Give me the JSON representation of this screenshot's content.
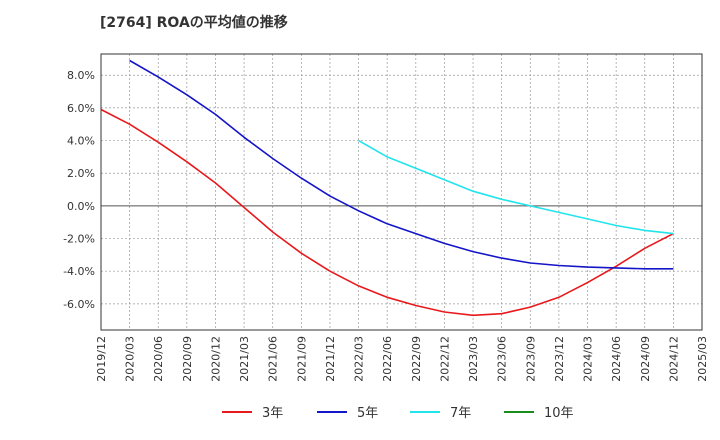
{
  "chart_data": {
    "type": "line",
    "title": "[2764]  ROAの平均値の推移",
    "xlabel": "",
    "ylabel": "",
    "ylim": [
      -7.6,
      9.3
    ],
    "yticks": [
      8.0,
      6.0,
      4.0,
      2.0,
      0.0,
      -2.0,
      -4.0,
      -6.0
    ],
    "ytick_labels": [
      "8.0%",
      "6.0%",
      "4.0%",
      "2.0%",
      "0.0%",
      "-2.0%",
      "-4.0%",
      "-6.0%"
    ],
    "x_categories": [
      "2019/12",
      "2020/03",
      "2020/06",
      "2020/09",
      "2020/12",
      "2021/03",
      "2021/06",
      "2021/09",
      "2021/12",
      "2022/03",
      "2022/06",
      "2022/09",
      "2022/12",
      "2023/03",
      "2023/06",
      "2023/09",
      "2023/12",
      "2024/03",
      "2024/06",
      "2024/09",
      "2024/12",
      "2025/03"
    ],
    "grid": true,
    "legend_position": "bottom",
    "series": [
      {
        "name": "3年",
        "color": "#e8191c",
        "x": [
          "2019/12",
          "2020/03",
          "2020/06",
          "2020/09",
          "2020/12",
          "2021/03",
          "2021/06",
          "2021/09",
          "2021/12",
          "2022/03",
          "2022/06",
          "2022/09",
          "2022/12",
          "2023/03",
          "2023/06",
          "2023/09",
          "2023/12",
          "2024/03",
          "2024/06",
          "2024/09",
          "2024/12"
        ],
        "values": [
          5.9,
          5.0,
          3.9,
          2.7,
          1.4,
          -0.1,
          -1.6,
          -2.9,
          -4.0,
          -4.9,
          -5.6,
          -6.1,
          -6.5,
          -6.7,
          -6.6,
          -6.2,
          -5.6,
          -4.7,
          -3.7,
          -2.6,
          -1.7
        ]
      },
      {
        "name": "5年",
        "color": "#1414c8",
        "x": [
          "2020/03",
          "2020/06",
          "2020/09",
          "2020/12",
          "2021/03",
          "2021/06",
          "2021/09",
          "2021/12",
          "2022/03",
          "2022/06",
          "2022/09",
          "2022/12",
          "2023/03",
          "2023/06",
          "2023/09",
          "2023/12",
          "2024/03",
          "2024/06",
          "2024/09",
          "2024/12"
        ],
        "values": [
          8.9,
          7.9,
          6.8,
          5.6,
          4.2,
          2.9,
          1.7,
          0.6,
          -0.3,
          -1.1,
          -1.7,
          -2.3,
          -2.8,
          -3.2,
          -3.5,
          -3.65,
          -3.75,
          -3.8,
          -3.85,
          -3.85
        ]
      },
      {
        "name": "7年",
        "color": "#22e4ec",
        "x": [
          "2022/03",
          "2022/06",
          "2022/09",
          "2022/12",
          "2023/03",
          "2023/06",
          "2023/09",
          "2023/12",
          "2024/03",
          "2024/06",
          "2024/09",
          "2024/12"
        ],
        "values": [
          4.0,
          3.0,
          2.3,
          1.6,
          0.9,
          0.4,
          0.0,
          -0.4,
          -0.8,
          -1.2,
          -1.5,
          -1.7
        ]
      },
      {
        "name": "10年",
        "color": "#1a8c1a",
        "x": [],
        "values": []
      }
    ]
  }
}
